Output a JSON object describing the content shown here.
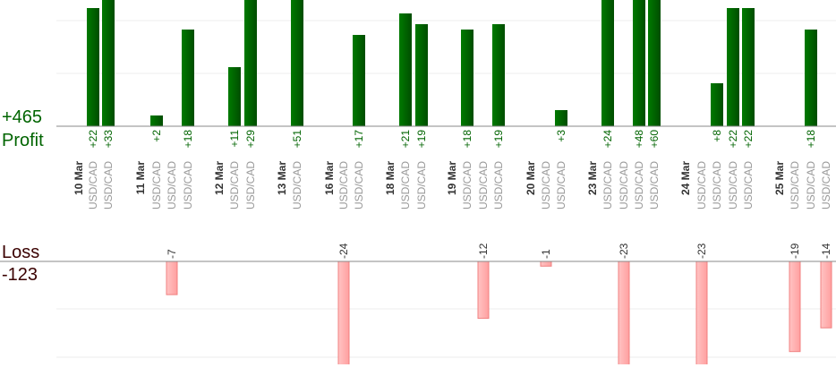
{
  "profit": {
    "total": "+465",
    "label": "Profit"
  },
  "loss": {
    "label": "Loss",
    "total": "-123"
  },
  "columns": [
    {
      "label": "10 Mar"
    },
    {
      "label": "USD/CAD",
      "value": 22,
      "value_label": "+22"
    },
    {
      "label": "USD/CAD",
      "value": 33,
      "value_label": "+33"
    },
    {
      "label": "11 Mar"
    },
    {
      "label": "USD/CAD",
      "value": 2,
      "value_label": "+2"
    },
    {
      "label": "USD/CAD",
      "value": -7
    },
    {
      "label": "USD/CAD",
      "value": 18,
      "value_label": "+18"
    },
    {
      "label": "12 Mar"
    },
    {
      "label": "USD/CAD",
      "value": 11,
      "value_label": "+11"
    },
    {
      "label": "USD/CAD",
      "value": 29,
      "value_label": "+29"
    },
    {
      "label": "13 Mar"
    },
    {
      "label": "USD/CAD",
      "value": 51,
      "value_label": "+51"
    },
    {
      "label": "16 Mar"
    },
    {
      "label": "USD/CAD",
      "value": -24
    },
    {
      "label": "USD/CAD",
      "value": 17,
      "value_label": "+17"
    },
    {
      "label": "18 Mar"
    },
    {
      "label": "USD/CAD",
      "value": 21,
      "value_label": "+21"
    },
    {
      "label": "USD/CAD",
      "value": 19,
      "value_label": "+19"
    },
    {
      "label": "19 Mar"
    },
    {
      "label": "USD/CAD",
      "value": 18,
      "value_label": "+18"
    },
    {
      "label": "USD/CAD",
      "value": -12
    },
    {
      "label": "USD/CAD",
      "value": 19,
      "value_label": "+19"
    },
    {
      "label": "20 Mar"
    },
    {
      "label": "USD/CAD",
      "value": -1
    },
    {
      "label": "USD/CAD",
      "value": 3,
      "value_label": "+3"
    },
    {
      "label": "23 Mar"
    },
    {
      "label": "USD/CAD",
      "value": 24,
      "value_label": "+24"
    },
    {
      "label": "USD/CAD",
      "value": -23
    },
    {
      "label": "USD/CAD",
      "value": 48,
      "value_label": "+48"
    },
    {
      "label": "USD/CAD",
      "value": 60,
      "value_label": "+60"
    },
    {
      "label": "24 Mar"
    },
    {
      "label": "USD/CAD",
      "value": -23
    },
    {
      "label": "USD/CAD",
      "value": 8,
      "value_label": "+8"
    },
    {
      "label": "USD/CAD",
      "value": 22,
      "value_label": "+22"
    },
    {
      "label": "USD/CAD",
      "value": 22,
      "value_label": "+22"
    },
    {
      "label": "25 Mar"
    },
    {
      "label": "USD/CAD",
      "value": -19
    },
    {
      "label": "USD/CAD",
      "value": 18,
      "value_label": "+18"
    },
    {
      "label": "USD/CAD",
      "value": -14
    }
  ]
}
